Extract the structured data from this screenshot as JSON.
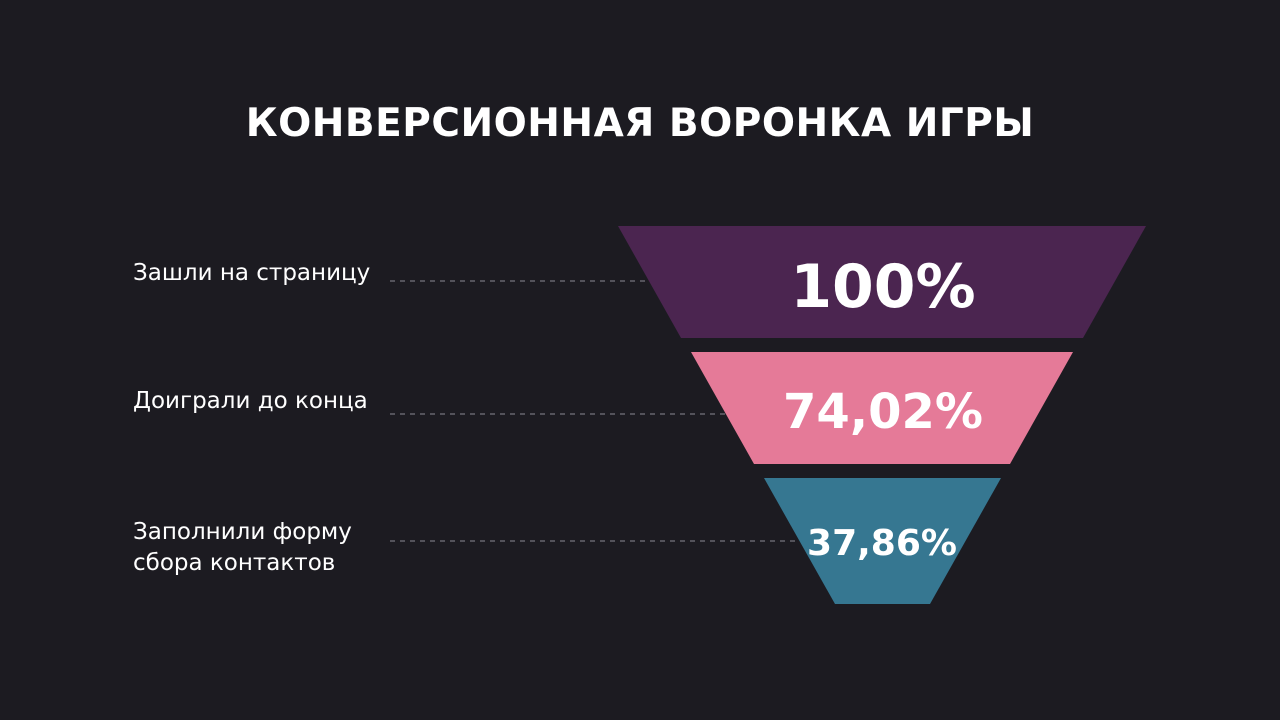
{
  "title": "КОНВЕРСИОННАЯ ВОРОНКА ИГРЫ",
  "chart_data": {
    "type": "funnel",
    "title": "КОНВЕРСИОННАЯ ВОРОНКА ИГРЫ",
    "stages": [
      {
        "label": "Зашли на страницу",
        "value": 100,
        "value_label": "100%",
        "color": "#4b2550"
      },
      {
        "label": "Доиграли до конца",
        "value": 74.02,
        "value_label": "74,02%",
        "color": "#e57a98"
      },
      {
        "label": "Заполнили форму сбора контактов",
        "value": 37.86,
        "value_label": "37,86%",
        "color": "#367791"
      }
    ]
  },
  "colors": {
    "background": "#1c1b21",
    "leader_line": "#8a8a92",
    "text": "#ffffff"
  }
}
